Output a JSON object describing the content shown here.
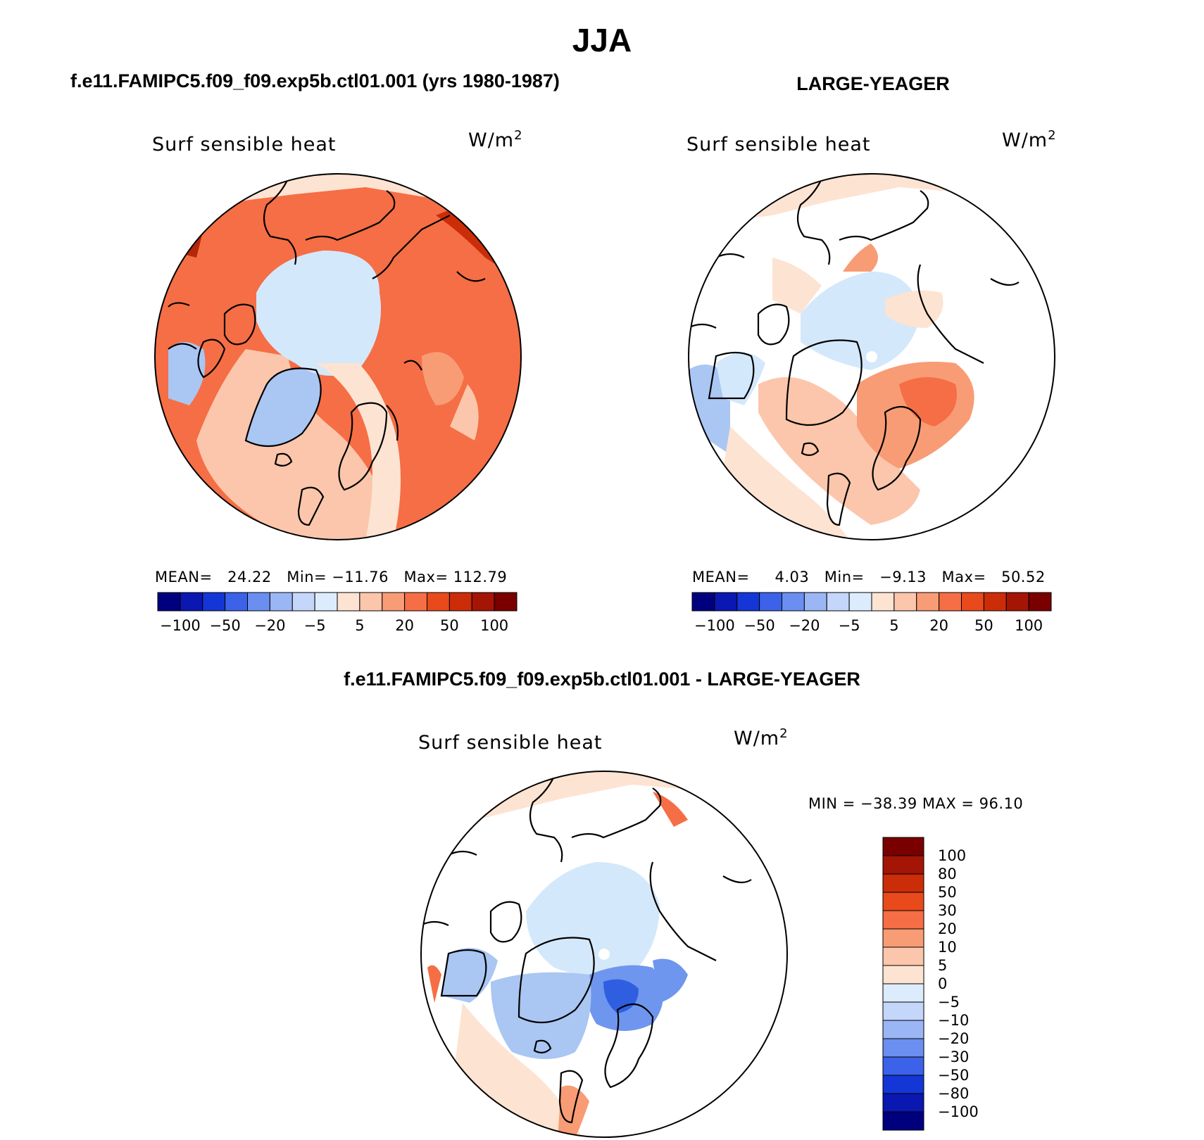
{
  "figure": {
    "title": "JJA"
  },
  "panels": [
    {
      "case_title": "f.e11.FAMIPC5.f09_f09.exp5b.ctl01.001 (yrs 1980-1987)",
      "variable": "Surf sensible heat",
      "units_base": "W/m",
      "units_exp": "2",
      "stats": {
        "mean_label": "MEAN=",
        "mean": "24.22",
        "min_label": "Min=",
        "min": "−11.76",
        "max_label": "Max=",
        "max": "112.79"
      }
    },
    {
      "case_title": "LARGE-YEAGER",
      "variable": "Surf sensible heat",
      "units_base": "W/m",
      "units_exp": "2",
      "stats": {
        "mean_label": "MEAN=",
        "mean": "4.03",
        "min_label": "Min=",
        "min": "−9.13",
        "max_label": "Max=",
        "max": "50.52"
      }
    },
    {
      "case_title": "f.e11.FAMIPC5.f09_f09.exp5b.ctl01.001 - LARGE-YEAGER",
      "variable": "Surf sensible heat",
      "units_base": "W/m",
      "units_exp": "2",
      "stats_text": "MIN = −38.39 MAX =   96.10"
    }
  ],
  "colorbars": {
    "horizontal": {
      "colors": [
        "#00007f",
        "#0a17b0",
        "#1436d6",
        "#3b62e8",
        "#6a8ff0",
        "#9bb6f5",
        "#c4d6fa",
        "#dcecfc",
        "#fde3d2",
        "#fbc6ab",
        "#f89c75",
        "#f56e45",
        "#e84a1c",
        "#cb2d08",
        "#a51505",
        "#7a0000"
      ],
      "ticks": [
        "−100",
        "−50",
        "−20",
        "−5",
        "5",
        "20",
        "50",
        "100"
      ]
    },
    "vertical": {
      "colors": [
        "#7a0000",
        "#a51505",
        "#cb2d08",
        "#e84a1c",
        "#f56e45",
        "#f89c75",
        "#fbc6ab",
        "#fde3d2",
        "#dcecfc",
        "#c4d6fa",
        "#9bb6f5",
        "#6a8ff0",
        "#3b62e8",
        "#1436d6",
        "#0a17b0",
        "#00007f"
      ],
      "ticks": [
        "100",
        "80",
        "50",
        "30",
        "20",
        "10",
        "5",
        "0",
        "−5",
        "−10",
        "−20",
        "−30",
        "−50",
        "−80",
        "−100"
      ]
    }
  },
  "map_colors": {
    "ocean_white": "#ffffff",
    "pale_blue": "#d4e8fb",
    "light_blue": "#aac6f3",
    "mid_blue": "#6f96ee",
    "deep_blue": "#2f5fe0",
    "pale_orange": "#fde3d2",
    "light_orange": "#fbc6ab",
    "salmon": "#f89c75",
    "orange": "#f56e45",
    "red_orange": "#e84a1c",
    "dark_red": "#b62608"
  }
}
